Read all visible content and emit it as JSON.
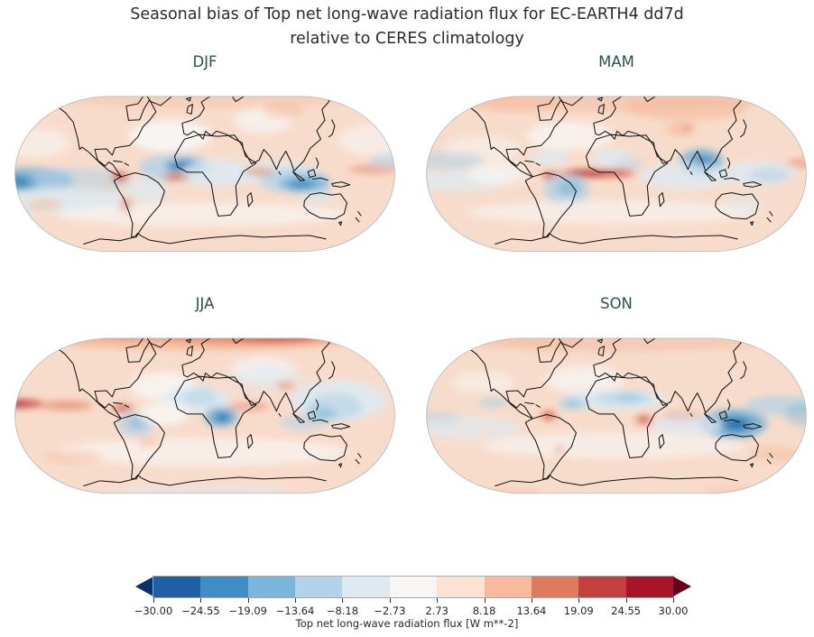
{
  "figure": {
    "title_line1": "Seasonal bias of Top net long-wave radiation flux for EC-EARTH4 dd7d",
    "title_line2": "relative to CERES climatology"
  },
  "palette": {
    "base": "#f8dccb",
    "dpink": "#f4c5ac",
    "white": "#f7f7f6",
    "lb": "#dcebf3",
    "mb": "#b0d2e7",
    "sb": "#74b2d8",
    "db": "#3a87bd",
    "ddb": "#1f5fa5",
    "sal": "#f6b695",
    "red": "#e27b5e",
    "dr": "#c5423f",
    "mar": "#a51529",
    "coast": "#111111",
    "map_border": "#b5b5b5"
  },
  "panels": [
    {
      "id": "djf",
      "label": "DJF",
      "blobs": [
        [
          540,
          205,
          140,
          55,
          "white",
          0.9
        ],
        [
          80,
          230,
          110,
          50,
          "white",
          0.6
        ],
        [
          1240,
          220,
          120,
          55,
          "white",
          0.6
        ],
        [
          860,
          150,
          100,
          45,
          "white",
          0.7
        ],
        [
          650,
          60,
          620,
          48,
          "dpink",
          0.55
        ],
        [
          930,
          115,
          70,
          28,
          "sal",
          0.45
        ],
        [
          60,
          360,
          150,
          45,
          "sb",
          0.75
        ],
        [
          20,
          368,
          70,
          26,
          "db",
          0.85
        ],
        [
          230,
          360,
          180,
          45,
          "mb",
          0.5
        ],
        [
          160,
          430,
          220,
          45,
          "lb",
          0.8
        ],
        [
          110,
          445,
          60,
          20,
          "sal",
          0.5
        ],
        [
          565,
          315,
          130,
          48,
          "mb",
          0.8
        ],
        [
          595,
          310,
          70,
          22,
          "db",
          0.85
        ],
        [
          608,
          308,
          34,
          12,
          "ddb",
          0.8
        ],
        [
          700,
          335,
          120,
          50,
          "lb",
          0.8
        ],
        [
          560,
          348,
          48,
          12,
          "red",
          0.8
        ],
        [
          553,
          349,
          20,
          7,
          "dr",
          0.7
        ],
        [
          368,
          348,
          30,
          18,
          "red",
          0.85
        ],
        [
          366,
          346,
          14,
          9,
          "dr",
          0.8
        ],
        [
          390,
          455,
          22,
          30,
          "red",
          0.8
        ],
        [
          388,
          455,
          10,
          14,
          "dr",
          0.8
        ],
        [
          460,
          395,
          70,
          45,
          "lb",
          0.7
        ],
        [
          900,
          335,
          150,
          40,
          "lb",
          0.8
        ],
        [
          970,
          362,
          120,
          42,
          "mb",
          0.8
        ],
        [
          1000,
          372,
          85,
          28,
          "sb",
          0.8
        ],
        [
          992,
          376,
          45,
          16,
          "db",
          0.75
        ],
        [
          848,
          330,
          55,
          13,
          "red",
          0.6
        ],
        [
          1240,
          322,
          85,
          16,
          "red",
          0.5
        ],
        [
          1295,
          292,
          70,
          24,
          "mb",
          0.6
        ],
        [
          650,
          480,
          500,
          40,
          "white",
          0.65
        ],
        [
          1045,
          420,
          55,
          24,
          "lb",
          0.6
        ],
        [
          1062,
          400,
          34,
          13,
          "mb",
          0.5
        ]
      ]
    },
    {
      "id": "mam",
      "label": "MAM",
      "blobs": [
        [
          650,
          65,
          620,
          55,
          "dpink",
          0.7
        ],
        [
          900,
          105,
          210,
          48,
          "sal",
          0.5
        ],
        [
          300,
          85,
          160,
          38,
          "sal",
          0.4
        ],
        [
          500,
          205,
          150,
          50,
          "white",
          0.75
        ],
        [
          200,
          250,
          130,
          45,
          "white",
          0.5
        ],
        [
          590,
          336,
          135,
          16,
          "red",
          0.9
        ],
        [
          560,
          336,
          70,
          10,
          "mar",
          0.75
        ],
        [
          655,
          331,
          60,
          10,
          "dr",
          0.6
        ],
        [
          432,
          344,
          27,
          16,
          "red",
          0.85
        ],
        [
          430,
          342,
          13,
          8,
          "dr",
          0.8
        ],
        [
          490,
          392,
          78,
          55,
          "mb",
          0.75
        ],
        [
          497,
          387,
          42,
          28,
          "sb",
          0.6
        ],
        [
          430,
          282,
          65,
          30,
          "lb",
          0.7
        ],
        [
          952,
          297,
          75,
          48,
          "sb",
          0.8
        ],
        [
          957,
          302,
          42,
          27,
          "db",
          0.8
        ],
        [
          960,
          304,
          20,
          13,
          "ddb",
          0.8
        ],
        [
          900,
          345,
          160,
          48,
          "lb",
          0.75
        ],
        [
          80,
          292,
          130,
          30,
          "mb",
          0.55
        ],
        [
          120,
          362,
          160,
          38,
          "lb",
          0.7
        ],
        [
          250,
          335,
          100,
          40,
          "white",
          0.7
        ],
        [
          645,
          282,
          70,
          35,
          "lb",
          0.75
        ],
        [
          705,
          302,
          50,
          25,
          "mb",
          0.4
        ],
        [
          880,
          182,
          55,
          22,
          "sal",
          0.6
        ],
        [
          902,
          176,
          16,
          8,
          "dr",
          0.5
        ],
        [
          650,
          472,
          500,
          40,
          "white",
          0.6
        ],
        [
          1150,
          335,
          130,
          42,
          "lb",
          0.75
        ],
        [
          1185,
          342,
          70,
          25,
          "mb",
          0.55
        ],
        [
          1292,
          300,
          45,
          16,
          "red",
          0.5
        ],
        [
          1100,
          442,
          65,
          30,
          "lb",
          0.55
        ]
      ]
    },
    {
      "id": "jja",
      "label": "JJA",
      "blobs": [
        [
          650,
          55,
          620,
          52,
          "sal",
          0.85
        ],
        [
          820,
          50,
          340,
          34,
          "red",
          0.75
        ],
        [
          900,
          62,
          130,
          20,
          "dr",
          0.6
        ],
        [
          400,
          48,
          130,
          18,
          "dr",
          0.5
        ],
        [
          520,
          235,
          115,
          50,
          "white",
          0.8
        ],
        [
          860,
          175,
          110,
          42,
          "white",
          0.7
        ],
        [
          880,
          205,
          120,
          48,
          "lb",
          0.55
        ],
        [
          630,
          282,
          115,
          50,
          "lb",
          0.85
        ],
        [
          642,
          272,
          62,
          30,
          "mb",
          0.55
        ],
        [
          716,
          342,
          58,
          36,
          "sb",
          0.8
        ],
        [
          719,
          344,
          30,
          19,
          "db",
          0.8
        ],
        [
          721,
          346,
          15,
          9,
          "ddb",
          0.75
        ],
        [
          422,
          368,
          62,
          42,
          "mb",
          0.7
        ],
        [
          427,
          362,
          32,
          21,
          "sb",
          0.5
        ],
        [
          35,
          296,
          70,
          15,
          "dr",
          0.85
        ],
        [
          12,
          296,
          32,
          10,
          "mar",
          0.7
        ],
        [
          185,
          302,
          90,
          16,
          "red",
          0.65
        ],
        [
          378,
          312,
          36,
          12,
          "dr",
          0.75
        ],
        [
          520,
          332,
          85,
          40,
          "white",
          0.8
        ],
        [
          812,
          306,
          70,
          13,
          "red",
          0.55
        ],
        [
          937,
          232,
          32,
          14,
          "red",
          0.55
        ],
        [
          1120,
          285,
          165,
          70,
          "lb",
          0.85
        ],
        [
          1105,
          305,
          95,
          45,
          "mb",
          0.6
        ],
        [
          1062,
          332,
          52,
          24,
          "sb",
          0.5
        ],
        [
          1000,
          362,
          80,
          28,
          "mb",
          0.55
        ],
        [
          650,
          465,
          500,
          48,
          "white",
          0.65
        ],
        [
          210,
          482,
          100,
          24,
          "sal",
          0.4
        ],
        [
          650,
          600,
          300,
          22,
          "lb",
          0.45
        ],
        [
          470,
          432,
          40,
          18,
          "sal",
          0.5
        ]
      ]
    },
    {
      "id": "son",
      "label": "SON",
      "blobs": [
        [
          650,
          62,
          620,
          52,
          "dpink",
          0.7
        ],
        [
          410,
          72,
          150,
          28,
          "sal",
          0.35
        ],
        [
          550,
          212,
          135,
          48,
          "white",
          0.7
        ],
        [
          205,
          222,
          105,
          40,
          "white",
          0.5
        ],
        [
          655,
          282,
          185,
          34,
          "lb",
          0.85
        ],
        [
          685,
          277,
          95,
          22,
          "mb",
          0.65
        ],
        [
          705,
          274,
          42,
          12,
          "sb",
          0.4
        ],
        [
          512,
          296,
          52,
          22,
          "mb",
          0.7
        ],
        [
          507,
          294,
          24,
          12,
          "sb",
          0.5
        ],
        [
          428,
          338,
          27,
          18,
          "red",
          0.8
        ],
        [
          426,
          336,
          13,
          9,
          "dr",
          0.75
        ],
        [
          466,
          458,
          18,
          24,
          "red",
          0.7
        ],
        [
          464,
          458,
          8,
          11,
          "dr",
          0.7
        ],
        [
          755,
          352,
          30,
          18,
          "red",
          0.75
        ],
        [
          753,
          350,
          13,
          8,
          "dr",
          0.7
        ],
        [
          892,
          342,
          70,
          18,
          "red",
          0.6
        ],
        [
          1062,
          367,
          115,
          52,
          "sb",
          0.85
        ],
        [
          1067,
          367,
          62,
          29,
          "db",
          0.8
        ],
        [
          1072,
          369,
          30,
          14,
          "ddb",
          0.8
        ],
        [
          1225,
          302,
          125,
          35,
          "mb",
          0.7
        ],
        [
          1300,
          332,
          60,
          40,
          "sb",
          0.4
        ],
        [
          905,
          372,
          120,
          40,
          "lb",
          0.7
        ],
        [
          40,
          352,
          90,
          30,
          "mb",
          0.5
        ],
        [
          150,
          382,
          180,
          40,
          "lb",
          0.6
        ],
        [
          237,
          292,
          48,
          18,
          "mb",
          0.7
        ],
        [
          650,
          442,
          450,
          45,
          "white",
          0.6
        ],
        [
          1205,
          472,
          85,
          28,
          "sal",
          0.45
        ],
        [
          305,
          608,
          100,
          18,
          "sal",
          0.35
        ],
        [
          1050,
          598,
          90,
          16,
          "sal",
          0.35
        ]
      ]
    }
  ],
  "colorbar": {
    "label": "Top net long-wave radiation flux [W m**-2]",
    "ticks": [
      "−30.00",
      "−24.55",
      "−19.09",
      "−13.64",
      "−8.18",
      "−2.73",
      "2.73",
      "8.18",
      "13.64",
      "19.09",
      "24.55",
      "30.00"
    ],
    "segment_colors": [
      "#1e5fa5",
      "#3e8ec4",
      "#7ab6d9",
      "#b3d3e8",
      "#ddeaf2",
      "#f7f6f5",
      "#fbe3d4",
      "#f8b99d",
      "#e1795f",
      "#c4403e",
      "#a81529"
    ],
    "extend_left_color": "#08306b",
    "extend_right_color": "#67001f"
  },
  "chart_data": {
    "type": "heatmap",
    "subtype": "filled-contour global maps (Robinson projection), 2x2 seasonal panels",
    "title": "Seasonal bias of Top net long-wave radiation flux for EC-EARTH4 dd7d relative to CERES climatology",
    "panels": [
      "DJF",
      "MAM",
      "JJA",
      "SON"
    ],
    "colorbar_label": "Top net long-wave radiation flux [W m**-2]",
    "units": "W m**-2",
    "levels": [
      -30.0,
      -24.55,
      -19.09,
      -13.64,
      -8.18,
      -2.73,
      2.73,
      8.18,
      13.64,
      19.09,
      24.55,
      30.0
    ],
    "colormap": "diverging blue-white-red (RdBu_r), with dark-navy / dark-maroon out-of-range arrow extensions",
    "colorbar_range": [
      -30,
      30
    ],
    "legend_position": "bottom horizontal colorbar",
    "grid": false,
    "notable_features": {
      "DJF": "weak positive (pink) bias over most oceans and high latitudes; negative (blue) bands over equatorial Atlantic, Indian Ocean/Indonesia and eastern equatorial Pacific; strong positive spots over Peru/Andes and south of West Africa",
      "MAM": "strong positive (dark red) streak along equatorial Atlantic; strong negative (dark blue) over Bay of Bengal/South India; negative over Amazon; positive over northern Eurasia",
      "JJA": "strong positive bias across Arctic high latitudes; positive ITCZ streaks in east Pacific; negative over Sahara, Ethiopia, Amazon and the western North Pacific",
      "SON": "strong negative (dark blue) over the Maritime Continent and western Pacific; negative equatorial band over Africa/Atlantic; positive spots over Peru, southern Andes and Congo"
    }
  }
}
